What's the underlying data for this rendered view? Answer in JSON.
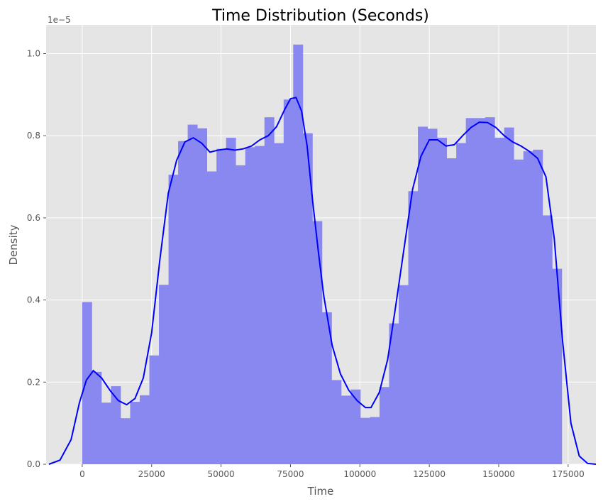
{
  "chart_data": {
    "type": "bar",
    "title": "Time Distribution (Seconds)",
    "xlabel": "Time",
    "ylabel": "Density",
    "y_multiplier": "1e−5",
    "xlim": [
      -13000,
      185000
    ],
    "ylim": [
      0,
      1.07
    ],
    "x_ticks": [
      0,
      25000,
      50000,
      75000,
      100000,
      125000,
      150000,
      175000
    ],
    "x_tick_labels": [
      "0",
      "25000",
      "50000",
      "75000",
      "100000",
      "125000",
      "150000",
      "175000"
    ],
    "y_ticks": [
      0,
      0.2,
      0.4,
      0.6,
      0.8,
      1.0
    ],
    "y_tick_labels": [
      "0.0",
      "0.2",
      "0.4",
      "0.6",
      "0.8",
      "1.0"
    ],
    "grid": true,
    "colors": {
      "background": "#e5e5e5",
      "grid": "#ffffff",
      "bars": "#8888f0",
      "kde": "#0000ff"
    },
    "histogram": {
      "bin_start": 0,
      "bin_width": 3454,
      "densities": [
        0.395,
        0.225,
        0.15,
        0.19,
        0.112,
        0.152,
        0.168,
        0.265,
        0.437,
        0.705,
        0.787,
        0.827,
        0.818,
        0.713,
        0.768,
        0.795,
        0.728,
        0.772,
        0.775,
        0.845,
        0.782,
        0.888,
        1.022,
        0.806,
        0.592,
        0.37,
        0.205,
        0.167,
        0.182,
        0.113,
        0.115,
        0.188,
        0.343,
        0.436,
        0.665,
        0.822,
        0.817,
        0.795,
        0.745,
        0.782,
        0.843,
        0.843,
        0.845,
        0.795,
        0.82,
        0.742,
        0.762,
        0.766,
        0.606,
        0.476
      ]
    },
    "kde": {
      "x": [
        -12000,
        -8000,
        -4000,
        -1000,
        1500,
        4000,
        7000,
        10000,
        13000,
        16000,
        19000,
        22000,
        25000,
        28000,
        31000,
        34000,
        37000,
        40000,
        43000,
        46000,
        49000,
        52000,
        55000,
        58000,
        61000,
        64000,
        67000,
        70000,
        73000,
        75000,
        77000,
        79000,
        81000,
        83000,
        85000,
        87000,
        90000,
        93000,
        96000,
        99000,
        102000,
        104000,
        107000,
        110000,
        113000,
        116000,
        119000,
        122000,
        125000,
        128000,
        131000,
        134000,
        137000,
        140000,
        143000,
        146000,
        149000,
        152000,
        155000,
        158000,
        161000,
        164000,
        167000,
        170000,
        173000,
        176000,
        179000,
        182000,
        185000
      ],
      "y": [
        0.0,
        0.01,
        0.06,
        0.15,
        0.205,
        0.228,
        0.21,
        0.18,
        0.155,
        0.145,
        0.16,
        0.21,
        0.32,
        0.5,
        0.66,
        0.74,
        0.785,
        0.795,
        0.782,
        0.76,
        0.765,
        0.768,
        0.765,
        0.768,
        0.775,
        0.79,
        0.8,
        0.822,
        0.865,
        0.89,
        0.893,
        0.86,
        0.775,
        0.64,
        0.52,
        0.41,
        0.29,
        0.22,
        0.18,
        0.155,
        0.138,
        0.138,
        0.175,
        0.255,
        0.39,
        0.53,
        0.67,
        0.75,
        0.79,
        0.79,
        0.775,
        0.778,
        0.8,
        0.82,
        0.833,
        0.832,
        0.82,
        0.8,
        0.785,
        0.775,
        0.762,
        0.745,
        0.7,
        0.55,
        0.3,
        0.1,
        0.02,
        0.002,
        0.0
      ]
    }
  }
}
